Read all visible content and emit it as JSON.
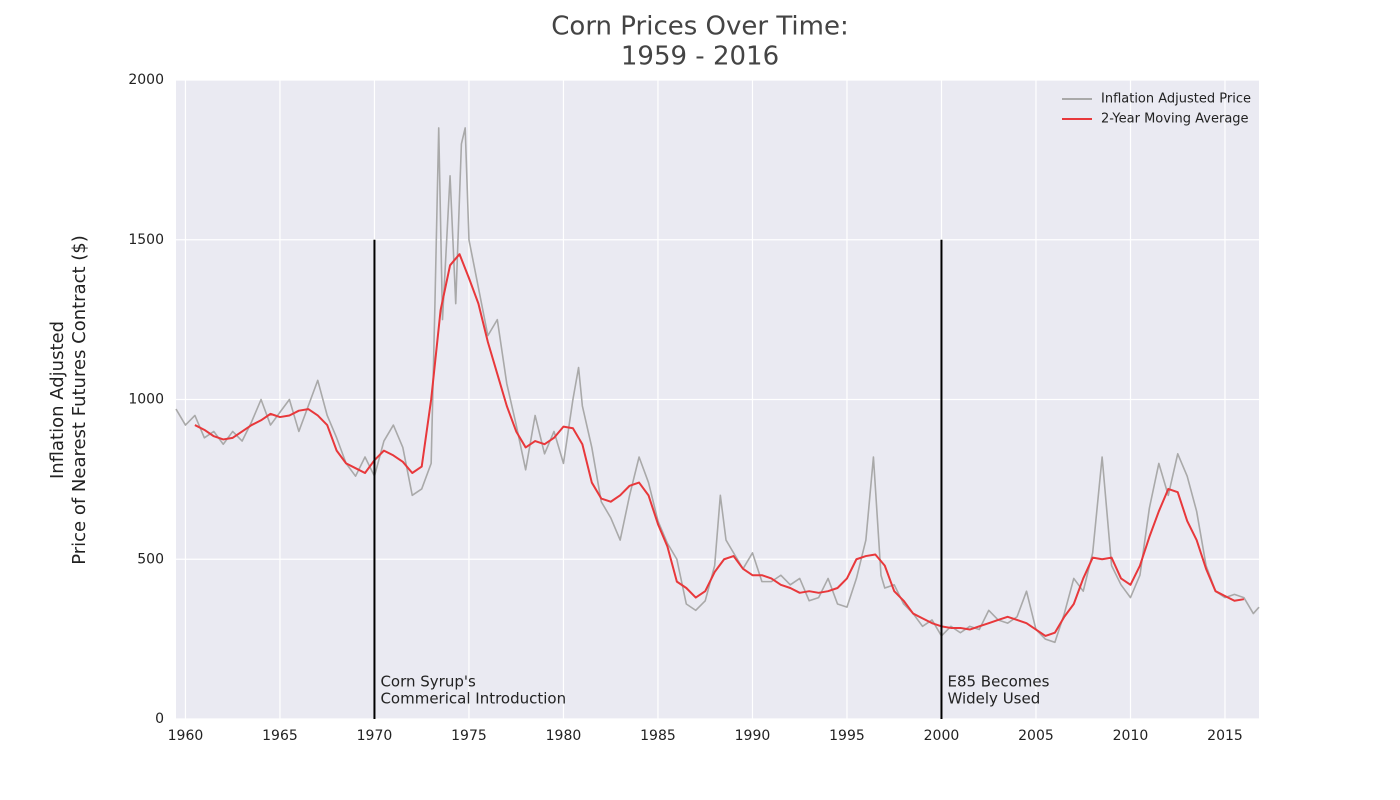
{
  "chart_data": {
    "type": "line",
    "title": [
      "Corn Prices Over Time:",
      "1959 - 2016"
    ],
    "y_label": [
      "Inflation Adjusted",
      "Price of Nearest Futures Contract ($)"
    ],
    "xlim": [
      1959.5,
      2016.8
    ],
    "ylim": [
      0,
      2000
    ],
    "xticks": [
      1960,
      1965,
      1970,
      1975,
      1980,
      1985,
      1990,
      1995,
      2000,
      2005,
      2010,
      2015
    ],
    "yticks": [
      0,
      500,
      1000,
      1500,
      2000
    ],
    "grid": true,
    "legend": "upper right",
    "series": [
      {
        "name": "Inflation Adjusted Price",
        "color": "#a9a9a9",
        "x": [
          1959.5,
          1960,
          1960.5,
          1961,
          1961.5,
          1962,
          1962.5,
          1963,
          1963.5,
          1964,
          1964.5,
          1965,
          1965.5,
          1966,
          1966.5,
          1967,
          1967.5,
          1968,
          1968.5,
          1969,
          1969.5,
          1970,
          1970.5,
          1971,
          1971.5,
          1972,
          1972.5,
          1973,
          1973.2,
          1973.4,
          1973.6,
          1974,
          1974.3,
          1974.6,
          1974.8,
          1975,
          1975.5,
          1976,
          1976.5,
          1977,
          1977.5,
          1978,
          1978.5,
          1979,
          1979.5,
          1980,
          1980.5,
          1980.8,
          1981,
          1981.5,
          1982,
          1982.5,
          1983,
          1983.5,
          1984,
          1984.5,
          1985,
          1985.5,
          1986,
          1986.5,
          1987,
          1987.5,
          1988,
          1988.3,
          1988.6,
          1989,
          1989.5,
          1990,
          1990.5,
          1991,
          1991.5,
          1992,
          1992.5,
          1993,
          1993.5,
          1994,
          1994.5,
          1995,
          1995.5,
          1996,
          1996.4,
          1996.8,
          1997,
          1997.5,
          1998,
          1998.5,
          1999,
          1999.5,
          2000,
          2000.5,
          2001,
          2001.5,
          2002,
          2002.5,
          2003,
          2003.5,
          2004,
          2004.5,
          2005,
          2005.5,
          2006,
          2006.5,
          2007,
          2007.5,
          2008,
          2008.5,
          2009,
          2009.5,
          2010,
          2010.5,
          2011,
          2011.5,
          2012,
          2012.5,
          2013,
          2013.5,
          2014,
          2014.5,
          2015,
          2015.5,
          2016,
          2016.5,
          2016.8
        ],
        "values": [
          970,
          920,
          950,
          880,
          900,
          860,
          900,
          870,
          930,
          1000,
          920,
          960,
          1000,
          900,
          980,
          1060,
          950,
          880,
          800,
          760,
          820,
          760,
          870,
          920,
          850,
          700,
          720,
          800,
          1300,
          1850,
          1250,
          1700,
          1300,
          1800,
          1850,
          1500,
          1350,
          1200,
          1250,
          1050,
          920,
          780,
          950,
          830,
          900,
          800,
          1000,
          1100,
          980,
          850,
          680,
          630,
          560,
          700,
          820,
          740,
          620,
          550,
          500,
          360,
          340,
          370,
          480,
          700,
          560,
          520,
          470,
          520,
          430,
          430,
          450,
          420,
          440,
          370,
          380,
          440,
          360,
          350,
          440,
          560,
          820,
          450,
          410,
          420,
          360,
          330,
          290,
          310,
          260,
          290,
          270,
          290,
          280,
          340,
          310,
          300,
          320,
          400,
          280,
          250,
          240,
          330,
          440,
          400,
          520,
          820,
          480,
          420,
          380,
          450,
          660,
          800,
          700,
          830,
          760,
          650,
          480,
          400,
          380,
          390,
          380,
          330,
          350
        ]
      },
      {
        "name": "2-Year Moving Average",
        "color": "#e8383b",
        "x": [
          1960.5,
          1961,
          1961.5,
          1962,
          1962.5,
          1963,
          1963.5,
          1964,
          1964.5,
          1965,
          1965.5,
          1966,
          1966.5,
          1967,
          1967.5,
          1968,
          1968.5,
          1969,
          1969.5,
          1970,
          1970.5,
          1971,
          1971.5,
          1972,
          1972.5,
          1973,
          1973.5,
          1974,
          1974.5,
          1975,
          1975.5,
          1976,
          1976.5,
          1977,
          1977.5,
          1978,
          1978.5,
          1979,
          1979.5,
          1980,
          1980.5,
          1981,
          1981.5,
          1982,
          1982.5,
          1983,
          1983.5,
          1984,
          1984.5,
          1985,
          1985.5,
          1986,
          1986.5,
          1987,
          1987.5,
          1988,
          1988.5,
          1989,
          1989.5,
          1990,
          1990.5,
          1991,
          1991.5,
          1992,
          1992.5,
          1993,
          1993.5,
          1994,
          1994.5,
          1995,
          1995.5,
          1996,
          1996.5,
          1997,
          1997.5,
          1998,
          1998.5,
          1999,
          1999.5,
          2000,
          2000.5,
          2001,
          2001.5,
          2002,
          2002.5,
          2003,
          2003.5,
          2004,
          2004.5,
          2005,
          2005.5,
          2006,
          2006.5,
          2007,
          2007.5,
          2008,
          2008.5,
          2009,
          2009.5,
          2010,
          2010.5,
          2011,
          2011.5,
          2012,
          2012.5,
          2013,
          2013.5,
          2014,
          2014.5,
          2015,
          2015.5,
          2016
        ],
        "values": [
          920,
          905,
          885,
          875,
          880,
          900,
          920,
          935,
          955,
          945,
          950,
          965,
          970,
          950,
          920,
          840,
          800,
          785,
          770,
          810,
          840,
          825,
          805,
          770,
          790,
          1000,
          1280,
          1420,
          1455,
          1380,
          1300,
          1180,
          1080,
          980,
          900,
          850,
          870,
          860,
          880,
          915,
          910,
          860,
          740,
          690,
          680,
          700,
          730,
          740,
          700,
          610,
          540,
          430,
          410,
          380,
          400,
          460,
          500,
          510,
          470,
          450,
          450,
          440,
          420,
          410,
          395,
          400,
          395,
          400,
          410,
          440,
          500,
          510,
          515,
          480,
          400,
          370,
          330,
          315,
          300,
          290,
          285,
          285,
          280,
          290,
          300,
          310,
          320,
          310,
          300,
          280,
          260,
          270,
          320,
          360,
          440,
          505,
          500,
          505,
          440,
          420,
          480,
          570,
          650,
          720,
          710,
          620,
          560,
          470,
          400,
          385,
          370,
          375
        ]
      }
    ],
    "annotations": [
      {
        "x": 1970,
        "y": 1500,
        "text": [
          "Corn Syrup's",
          "Commerical Introduction"
        ]
      },
      {
        "x": 2000,
        "y": 1500,
        "text": [
          "E85 Becomes",
          "Widely Used"
        ]
      }
    ]
  }
}
